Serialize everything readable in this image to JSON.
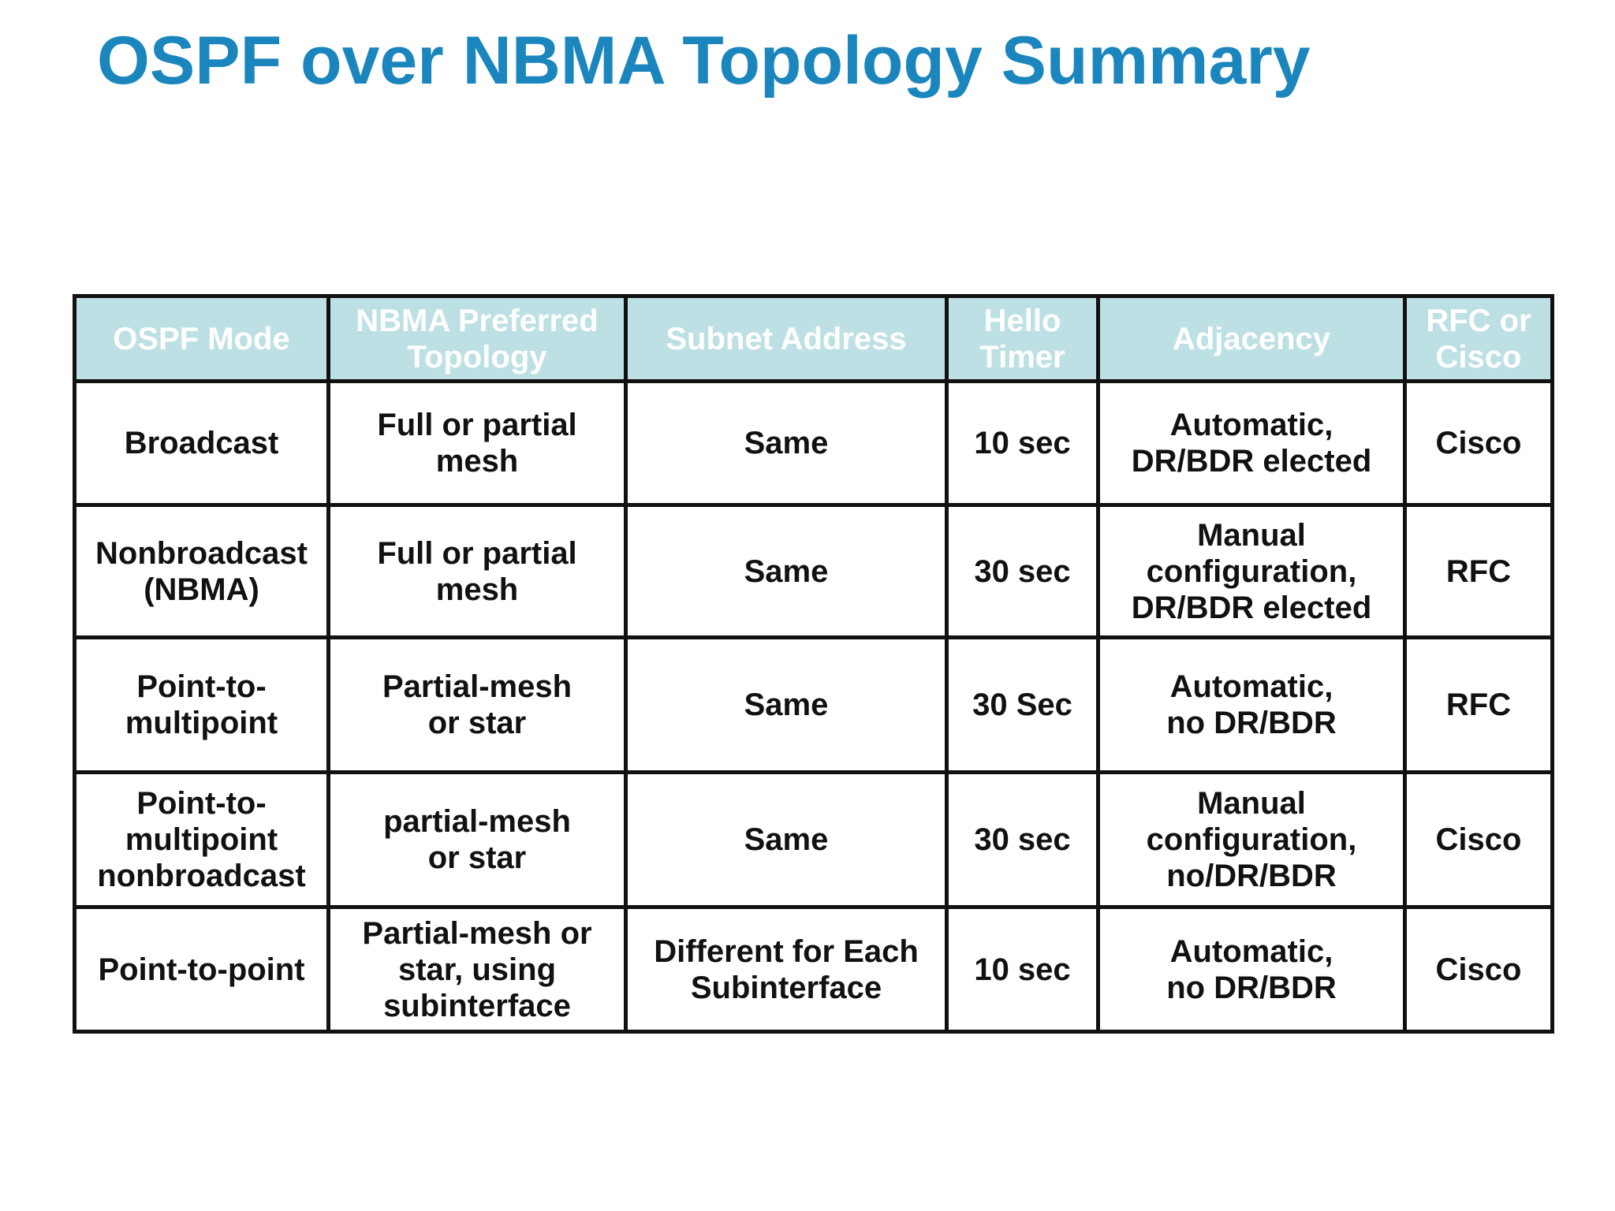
{
  "title": "OSPF over NBMA Topology Summary",
  "table": {
    "headers": [
      "OSPF Mode",
      "NBMA Preferred\nTopology",
      "Subnet Address",
      "Hello\nTimer",
      "Adjacency",
      "RFC or\nCisco"
    ],
    "rows": [
      [
        "Broadcast",
        "Full or partial\nmesh",
        "Same",
        "10 sec",
        "Automatic,\nDR/BDR elected",
        "Cisco"
      ],
      [
        "Nonbroadcast\n(NBMA)",
        "Full or partial\nmesh",
        "Same",
        "30 sec",
        "Manual\nconfiguration,\nDR/BDR elected",
        "RFC"
      ],
      [
        "Point-to-\nmultipoint",
        "Partial-mesh\nor star",
        "Same",
        "30 Sec",
        "Automatic,\nno DR/BDR",
        "RFC"
      ],
      [
        "Point-to-\nmultipoint\nnonbroadcast",
        "partial-mesh\nor star",
        "Same",
        "30 sec",
        "Manual\nconfiguration,\nno/DR/BDR",
        "Cisco"
      ],
      [
        "Point-to-point",
        "Partial-mesh or\nstar, using\nsubinterface",
        "Different for Each\nSubinterface",
        "10 sec",
        "Automatic,\nno DR/BDR",
        "Cisco"
      ]
    ]
  },
  "colors": {
    "title": "#1a86bd",
    "header_background": "#bde0e4",
    "header_text": "#ffffff",
    "border": "#111111",
    "cell_text": "#111111"
  }
}
